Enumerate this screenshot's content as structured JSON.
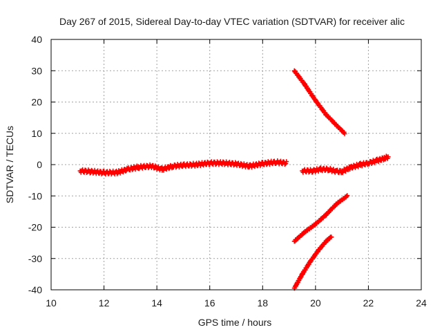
{
  "chart_data": {
    "type": "scatter",
    "title": "Day 267 of 2015, Sidereal Day-to-day VTEC variation (SDTVAR) for receiver alic",
    "xlabel": "GPS time / hours",
    "ylabel": "SDTVAR / TECUs",
    "xlim": [
      10,
      24
    ],
    "ylim": [
      -40,
      40
    ],
    "xticks": [
      10,
      12,
      14,
      16,
      18,
      20,
      22,
      24
    ],
    "yticks": [
      -40,
      -30,
      -20,
      -10,
      0,
      10,
      20,
      30,
      40
    ],
    "grid": true,
    "marker": "+",
    "color": "#ff0000",
    "series": [
      {
        "x": [
          11.1,
          11.5,
          12.0,
          12.5,
          12.9,
          13.3,
          13.8,
          14.2,
          14.6,
          15.0,
          15.5,
          16.0,
          16.5,
          17.0,
          17.5,
          18.0,
          18.5,
          18.9
        ],
        "y": [
          -2.0,
          -2.2,
          -2.6,
          -2.5,
          -1.5,
          -0.8,
          -0.5,
          -1.5,
          -0.5,
          -0.2,
          0.0,
          0.5,
          0.5,
          0.2,
          -0.5,
          0.3,
          0.8,
          0.5
        ]
      },
      {
        "x": [
          19.5,
          19.9,
          20.2,
          20.5,
          20.8,
          21.0,
          21.3,
          21.7,
          22.0,
          22.3,
          22.6,
          22.75
        ],
        "y": [
          -2.0,
          -2.0,
          -1.5,
          -1.5,
          -2.2,
          -2.2,
          -1.0,
          0.0,
          0.5,
          1.2,
          2.0,
          2.5
        ]
      },
      {
        "x": [
          19.2,
          19.6,
          20.0,
          20.4,
          20.8,
          21.1
        ],
        "y": [
          30.0,
          25.5,
          20.5,
          16.0,
          12.5,
          10.0
        ]
      },
      {
        "x": [
          19.2,
          19.6,
          20.0,
          20.4,
          20.8,
          21.2
        ],
        "y": [
          -24.5,
          -21.5,
          -19.0,
          -16.0,
          -12.5,
          -10.0
        ]
      },
      {
        "x": [
          19.2,
          19.5,
          19.8,
          20.1,
          20.4,
          20.6
        ],
        "y": [
          -39.5,
          -35.0,
          -31.0,
          -27.5,
          -24.5,
          -23.0
        ]
      }
    ]
  }
}
